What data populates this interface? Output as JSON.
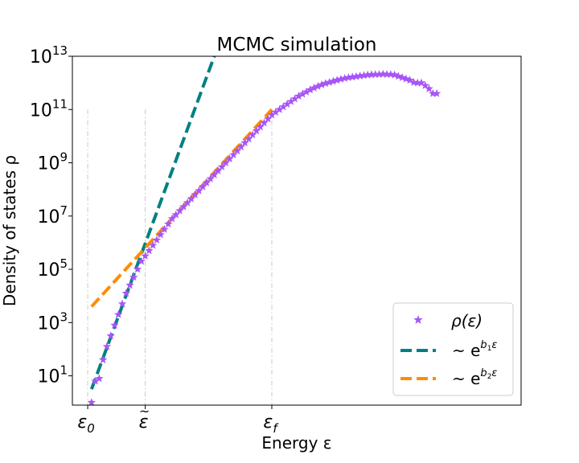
{
  "chart_data": {
    "type": "scatter",
    "title": "MCMC simulation",
    "xlabel": "Energy ε",
    "ylabel": "Density of states ρ",
    "yscale": "log",
    "xlim": [
      -0.4,
      11.3
    ],
    "ylim_log10": [
      -0.1,
      13
    ],
    "y_ticks_log10": [
      1,
      3,
      5,
      7,
      9,
      11,
      13
    ],
    "y_tick_labels": [
      "10",
      "10",
      "10",
      "10",
      "10",
      "10",
      "10"
    ],
    "y_tick_exponents": [
      "1",
      "3",
      "5",
      "7",
      "9",
      "11",
      "13"
    ],
    "x_ticks": [
      {
        "x": 0,
        "label": "ε",
        "sub": "0",
        "accent": ""
      },
      {
        "x": 1.5,
        "label": "ε",
        "sub": "",
        "accent": "~"
      },
      {
        "x": 4.8,
        "label": "ε",
        "sub": "f",
        "accent": ""
      }
    ],
    "reference_lines": {
      "x": [
        0,
        1.5,
        4.8
      ],
      "y_top_log10": 11
    },
    "grid": false,
    "legend_position": "lower-right",
    "colors": {
      "points": "#a855f7",
      "fit1": "#008080",
      "fit2": "#ff8c00"
    },
    "series": [
      {
        "name": "ρ(ε)",
        "kind": "points",
        "x": [
          0.1,
          0.2,
          0.3,
          0.4,
          0.5,
          0.6,
          0.7,
          0.8,
          0.9,
          1.0,
          1.1,
          1.2,
          1.3,
          1.4,
          1.5,
          1.6,
          1.7,
          1.8,
          1.9,
          2.0,
          2.1,
          2.2,
          2.3,
          2.4,
          2.5,
          2.6,
          2.7,
          2.8,
          2.9,
          3.0,
          3.1,
          3.2,
          3.3,
          3.4,
          3.5,
          3.6,
          3.7,
          3.8,
          3.9,
          4.0,
          4.1,
          4.2,
          4.3,
          4.4,
          4.5,
          4.6,
          4.7,
          4.8,
          4.9,
          5.0,
          5.1,
          5.2,
          5.3,
          5.4,
          5.5,
          5.6,
          5.7,
          5.8,
          5.9,
          6.0,
          6.1,
          6.2,
          6.3,
          6.4,
          6.5,
          6.6,
          6.7,
          6.8,
          6.9,
          7.0,
          7.1,
          7.2,
          7.3,
          7.4,
          7.5,
          7.6,
          7.7,
          7.8,
          7.9,
          8.0,
          8.1,
          8.2,
          8.3,
          8.4,
          8.5,
          8.6,
          8.7,
          8.8,
          8.9,
          9.0,
          9.1
        ],
        "y_log10": [
          0.0,
          0.8,
          0.9,
          1.6,
          2.1,
          2.5,
          2.9,
          3.3,
          3.7,
          4.1,
          4.4,
          4.7,
          5.0,
          5.3,
          5.5,
          5.7,
          5.9,
          6.1,
          6.3,
          6.5,
          6.7,
          6.9,
          7.05,
          7.2,
          7.35,
          7.5,
          7.65,
          7.8,
          7.95,
          8.1,
          8.25,
          8.4,
          8.55,
          8.7,
          8.85,
          9.0,
          9.15,
          9.3,
          9.45,
          9.6,
          9.75,
          9.9,
          10.05,
          10.2,
          10.35,
          10.5,
          10.65,
          10.8,
          10.9,
          11.0,
          11.1,
          11.2,
          11.3,
          11.4,
          11.5,
          11.58,
          11.66,
          11.74,
          11.81,
          11.87,
          11.93,
          11.98,
          12.02,
          12.06,
          12.1,
          12.14,
          12.17,
          12.2,
          12.22,
          12.24,
          12.26,
          12.28,
          12.3,
          12.31,
          12.32,
          12.32,
          12.33,
          12.32,
          12.32,
          12.3,
          12.25,
          12.2,
          12.15,
          12.1,
          12.02,
          12.0,
          12.0,
          11.9,
          11.78,
          11.6,
          11.6
        ]
      },
      {
        "name": "~ e^{b₁ε}",
        "label_prefix": "~ e",
        "label_sup": "b",
        "label_sub": "1",
        "label_tail": "ε",
        "kind": "line",
        "x": [
          0.1,
          3.3
        ],
        "y_log10": [
          0.5,
          13.0
        ]
      },
      {
        "name": "~ e^{b₂ε}",
        "label_prefix": "~ e",
        "label_sup": "b",
        "label_sub": "2",
        "label_tail": "ε",
        "kind": "line",
        "x": [
          0.1,
          4.8
        ],
        "y_log10": [
          3.6,
          11.0
        ]
      }
    ]
  }
}
